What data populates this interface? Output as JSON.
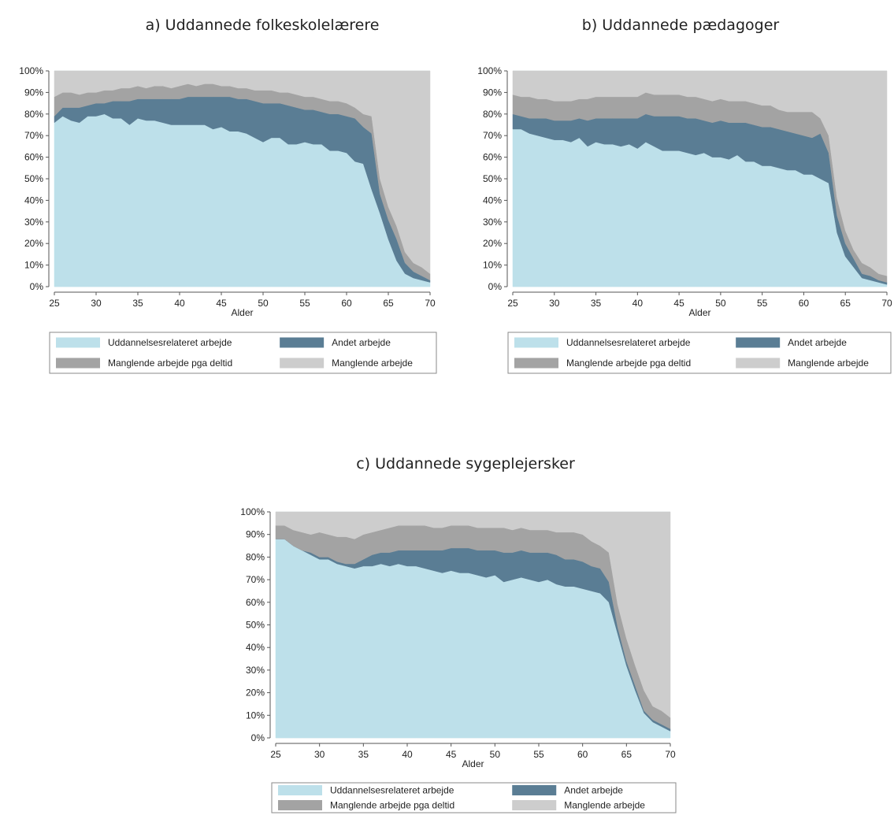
{
  "colors": {
    "uddannelsesrelateret": "#bde0ea",
    "andet": "#5a7d94",
    "deltid": "#a3a3a3",
    "manglende": "#cdcdcd",
    "grid": "#e6eef2",
    "axis": "#555555"
  },
  "chart_data": [
    {
      "type": "area",
      "stacked": true,
      "title": "a)   Uddannede folkeskolelærere",
      "xlabel": "Alder",
      "ylabel": "",
      "xlim": [
        25,
        70
      ],
      "ylim": [
        0,
        100
      ],
      "x_ticks": [
        25,
        30,
        35,
        40,
        45,
        50,
        55,
        60,
        65,
        70
      ],
      "y_ticks": [
        0,
        10,
        20,
        30,
        40,
        50,
        60,
        70,
        80,
        90,
        100
      ],
      "y_tick_labels": [
        "0%",
        "10%",
        "20%",
        "30%",
        "40%",
        "50%",
        "60%",
        "70%",
        "80%",
        "90%",
        "100%"
      ],
      "grid": true,
      "legend_position": "bottom",
      "x": [
        25,
        26,
        27,
        28,
        29,
        30,
        31,
        32,
        33,
        34,
        35,
        36,
        37,
        38,
        39,
        40,
        41,
        42,
        43,
        44,
        45,
        46,
        47,
        48,
        49,
        50,
        51,
        52,
        53,
        54,
        55,
        56,
        57,
        58,
        59,
        60,
        61,
        62,
        63,
        64,
        65,
        66,
        67,
        68,
        69,
        70
      ],
      "series": [
        {
          "name": "Uddannelsesrelateret arbejde",
          "values": [
            76,
            79,
            77,
            76,
            79,
            79,
            80,
            78,
            78,
            75,
            78,
            77,
            77,
            76,
            75,
            75,
            75,
            75,
            75,
            73,
            74,
            72,
            72,
            71,
            69,
            67,
            69,
            69,
            66,
            66,
            67,
            66,
            66,
            63,
            63,
            62,
            58,
            57,
            45,
            34,
            22,
            12,
            6,
            4,
            3,
            2
          ]
        },
        {
          "name": "Andet arbejde",
          "values": [
            3,
            4,
            6,
            7,
            5,
            6,
            5,
            8,
            8,
            11,
            9,
            10,
            10,
            11,
            12,
            12,
            13,
            13,
            13,
            15,
            14,
            16,
            15,
            16,
            17,
            18,
            16,
            16,
            18,
            17,
            15,
            16,
            15,
            17,
            17,
            17,
            20,
            17,
            26,
            9,
            9,
            10,
            5,
            3,
            2,
            1
          ]
        },
        {
          "name": "Manglende arbejde pga deltid",
          "values": [
            9,
            7,
            7,
            6,
            6,
            5,
            6,
            5,
            6,
            6,
            6,
            5,
            6,
            6,
            5,
            6,
            6,
            5,
            6,
            6,
            5,
            5,
            5,
            5,
            5,
            6,
            6,
            5,
            6,
            6,
            6,
            6,
            6,
            6,
            6,
            6,
            5,
            6,
            8,
            7,
            6,
            6,
            5,
            4,
            4,
            3
          ]
        },
        {
          "name": "Manglende arbejde",
          "values": [
            12,
            10,
            10,
            11,
            10,
            10,
            9,
            9,
            8,
            8,
            7,
            8,
            7,
            7,
            8,
            7,
            6,
            7,
            6,
            6,
            7,
            7,
            8,
            8,
            9,
            9,
            9,
            10,
            10,
            11,
            12,
            12,
            13,
            14,
            14,
            15,
            17,
            20,
            21,
            50,
            63,
            72,
            84,
            89,
            91,
            94
          ]
        }
      ]
    },
    {
      "type": "area",
      "stacked": true,
      "title": "b) Uddannede pædagoger",
      "xlabel": "Alder",
      "ylabel": "",
      "xlim": [
        25,
        70
      ],
      "ylim": [
        0,
        100
      ],
      "x_ticks": [
        25,
        30,
        35,
        40,
        45,
        50,
        55,
        60,
        65,
        70
      ],
      "y_ticks": [
        0,
        10,
        20,
        30,
        40,
        50,
        60,
        70,
        80,
        90,
        100
      ],
      "y_tick_labels": [
        "0%",
        "10%",
        "20%",
        "30%",
        "40%",
        "50%",
        "60%",
        "70%",
        "80%",
        "90%",
        "100%"
      ],
      "grid": true,
      "legend_position": "bottom",
      "x": [
        25,
        26,
        27,
        28,
        29,
        30,
        31,
        32,
        33,
        34,
        35,
        36,
        37,
        38,
        39,
        40,
        41,
        42,
        43,
        44,
        45,
        46,
        47,
        48,
        49,
        50,
        51,
        52,
        53,
        54,
        55,
        56,
        57,
        58,
        59,
        60,
        61,
        62,
        63,
        64,
        65,
        66,
        67,
        68,
        69,
        70
      ],
      "series": [
        {
          "name": "Uddannelsesrelateret arbejde",
          "values": [
            73,
            73,
            71,
            70,
            69,
            68,
            68,
            67,
            69,
            65,
            67,
            66,
            66,
            65,
            66,
            64,
            67,
            65,
            63,
            63,
            63,
            62,
            61,
            62,
            60,
            60,
            59,
            61,
            58,
            58,
            56,
            56,
            55,
            54,
            54,
            52,
            52,
            50,
            48,
            25,
            14,
            9,
            4,
            3,
            2,
            1
          ]
        },
        {
          "name": "Andet arbejde",
          "values": [
            7,
            6,
            7,
            8,
            9,
            9,
            9,
            10,
            9,
            12,
            11,
            12,
            12,
            13,
            12,
            14,
            13,
            14,
            16,
            16,
            16,
            16,
            17,
            15,
            16,
            17,
            17,
            15,
            18,
            17,
            18,
            18,
            18,
            18,
            17,
            18,
            17,
            21,
            14,
            8,
            6,
            4,
            2,
            2,
            1,
            1
          ]
        },
        {
          "name": "Manglende arbejde pga deltid",
          "values": [
            9,
            9,
            10,
            9,
            9,
            9,
            9,
            9,
            9,
            10,
            10,
            10,
            10,
            10,
            10,
            10,
            10,
            10,
            10,
            10,
            10,
            10,
            10,
            10,
            10,
            10,
            10,
            10,
            10,
            10,
            10,
            10,
            9,
            9,
            10,
            11,
            12,
            7,
            8,
            8,
            6,
            4,
            5,
            4,
            3,
            3
          ]
        },
        {
          "name": "Manglende arbejde",
          "values": [
            11,
            12,
            12,
            13,
            13,
            14,
            14,
            14,
            13,
            13,
            12,
            12,
            12,
            12,
            12,
            12,
            10,
            11,
            11,
            11,
            11,
            12,
            12,
            13,
            14,
            13,
            14,
            14,
            14,
            15,
            16,
            16,
            18,
            19,
            19,
            19,
            19,
            22,
            30,
            59,
            74,
            83,
            89,
            91,
            94,
            95
          ]
        }
      ]
    },
    {
      "type": "area",
      "stacked": true,
      "title": "c)   Uddannede sygeplejersker",
      "xlabel": "Alder",
      "ylabel": "",
      "xlim": [
        25,
        70
      ],
      "ylim": [
        0,
        100
      ],
      "x_ticks": [
        25,
        30,
        35,
        40,
        45,
        50,
        55,
        60,
        65,
        70
      ],
      "y_ticks": [
        0,
        10,
        20,
        30,
        40,
        50,
        60,
        70,
        80,
        90,
        100
      ],
      "y_tick_labels": [
        "0%",
        "10%",
        "20%",
        "30%",
        "40%",
        "50%",
        "60%",
        "70%",
        "80%",
        "90%",
        "100%"
      ],
      "grid": true,
      "legend_position": "bottom",
      "x": [
        25,
        26,
        27,
        28,
        29,
        30,
        31,
        32,
        33,
        34,
        35,
        36,
        37,
        38,
        39,
        40,
        41,
        42,
        43,
        44,
        45,
        46,
        47,
        48,
        49,
        50,
        51,
        52,
        53,
        54,
        55,
        56,
        57,
        58,
        59,
        60,
        61,
        62,
        63,
        64,
        65,
        66,
        67,
        68,
        69,
        70
      ],
      "series": [
        {
          "name": "Uddannelsesrelateret arbejde",
          "values": [
            88,
            88,
            85,
            83,
            81,
            79,
            79,
            77,
            76,
            75,
            76,
            76,
            77,
            76,
            77,
            76,
            76,
            75,
            74,
            73,
            74,
            73,
            73,
            72,
            71,
            72,
            69,
            70,
            71,
            70,
            69,
            70,
            68,
            67,
            67,
            66,
            65,
            64,
            60,
            46,
            32,
            21,
            11,
            7,
            5,
            3
          ]
        },
        {
          "name": "Andet arbejde",
          "values": [
            0,
            0,
            0,
            0,
            1,
            1,
            1,
            1,
            1,
            2,
            3,
            5,
            5,
            6,
            6,
            7,
            7,
            8,
            9,
            10,
            10,
            11,
            11,
            11,
            12,
            11,
            13,
            12,
            12,
            12,
            13,
            12,
            13,
            12,
            12,
            12,
            11,
            11,
            9,
            3,
            2,
            2,
            1,
            1,
            1,
            1
          ]
        },
        {
          "name": "Manglende arbejde pga deltid",
          "values": [
            6,
            6,
            7,
            8,
            8,
            11,
            10,
            11,
            12,
            11,
            11,
            10,
            10,
            11,
            11,
            11,
            11,
            11,
            10,
            10,
            10,
            10,
            10,
            10,
            10,
            10,
            11,
            10,
            10,
            10,
            10,
            10,
            10,
            12,
            12,
            12,
            11,
            10,
            13,
            10,
            10,
            9,
            9,
            6,
            6,
            5
          ]
        },
        {
          "name": "Manglende arbejde",
          "values": [
            6,
            6,
            8,
            9,
            10,
            9,
            10,
            11,
            11,
            12,
            10,
            9,
            8,
            7,
            6,
            6,
            6,
            6,
            7,
            7,
            6,
            6,
            6,
            7,
            7,
            7,
            7,
            8,
            7,
            8,
            8,
            8,
            9,
            9,
            9,
            10,
            13,
            15,
            18,
            41,
            56,
            68,
            79,
            86,
            88,
            91
          ]
        }
      ]
    }
  ]
}
